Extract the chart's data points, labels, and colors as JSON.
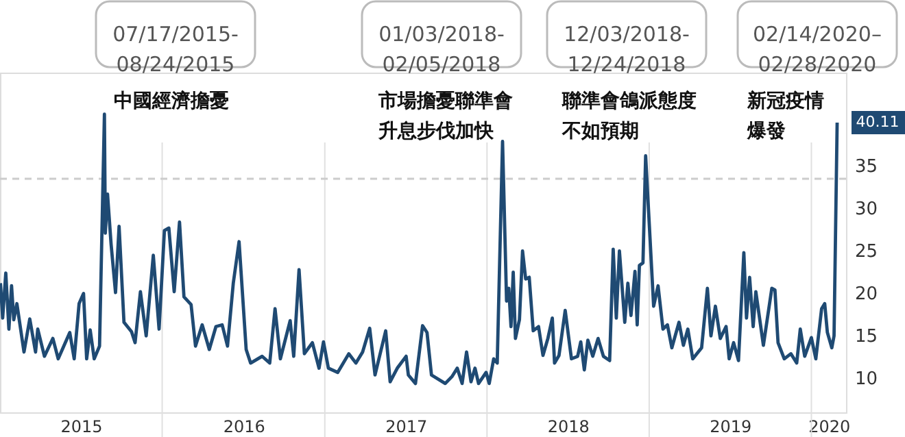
{
  "chart_data": {
    "type": "line",
    "x": [
      "2015-01-02",
      "2015-01-07",
      "2015-01-14",
      "2015-01-21",
      "2015-01-27",
      "2015-02-01",
      "2015-02-08",
      "2015-02-24",
      "2015-03-09",
      "2015-03-22",
      "2015-03-27",
      "2015-04-11",
      "2015-04-30",
      "2015-05-12",
      "2015-06-07",
      "2015-06-17",
      "2015-06-28",
      "2015-07-08",
      "2015-07-15",
      "2015-07-23",
      "2015-08-01",
      "2015-08-13",
      "2015-08-24",
      "2015-08-26",
      "2015-08-31",
      "2015-09-08",
      "2015-09-18",
      "2015-09-26",
      "2015-10-07",
      "2015-10-24",
      "2015-11-01",
      "2015-11-13",
      "2015-11-26",
      "2015-12-12",
      "2015-12-25",
      "2016-01-06",
      "2016-01-16",
      "2016-01-28",
      "2016-02-09",
      "2016-02-19",
      "2016-03-06",
      "2016-03-16",
      "2016-03-31",
      "2016-04-16",
      "2016-05-01",
      "2016-05-15",
      "2016-05-27",
      "2016-06-09",
      "2016-06-22",
      "2016-07-08",
      "2016-07-18",
      "2016-08-13",
      "2016-08-30",
      "2016-09-11",
      "2016-09-23",
      "2016-10-15",
      "2016-10-23",
      "2016-11-04",
      "2016-11-16",
      "2016-12-04",
      "2016-12-19",
      "2016-12-29",
      "2017-01-09",
      "2017-01-30",
      "2017-02-24",
      "2017-03-12",
      "2017-03-27",
      "2017-04-12",
      "2017-04-24",
      "2017-05-18",
      "2017-05-28",
      "2017-06-13",
      "2017-07-03",
      "2017-07-08",
      "2017-07-24",
      "2017-08-09",
      "2017-08-19",
      "2017-08-29",
      "2017-09-29",
      "2017-10-14",
      "2017-10-26",
      "2017-11-06",
      "2017-11-16",
      "2017-11-26",
      "2017-12-05",
      "2017-12-13",
      "2017-12-30",
      "2018-01-06",
      "2018-01-16",
      "2018-01-24",
      "2018-02-05",
      "2018-02-14",
      "2018-02-19",
      "2018-02-24",
      "2018-03-01",
      "2018-03-06",
      "2018-03-15",
      "2018-03-22",
      "2018-03-29",
      "2018-04-06",
      "2018-04-15",
      "2018-04-27",
      "2018-05-07",
      "2018-05-18",
      "2018-05-28",
      "2018-06-02",
      "2018-06-12",
      "2018-06-26",
      "2018-07-10",
      "2018-07-24",
      "2018-07-31",
      "2018-08-08",
      "2018-08-16",
      "2018-08-27",
      "2018-09-08",
      "2018-09-20",
      "2018-10-04",
      "2018-10-12",
      "2018-10-19",
      "2018-10-26",
      "2018-11-07",
      "2018-11-14",
      "2018-11-21",
      "2018-11-30",
      "2018-12-05",
      "2018-12-10",
      "2018-12-18",
      "2018-12-24",
      "2019-01-11",
      "2019-01-21",
      "2019-02-01",
      "2019-02-11",
      "2019-02-21",
      "2019-03-09",
      "2019-03-19",
      "2019-03-29",
      "2019-04-09",
      "2019-04-29",
      "2019-05-12",
      "2019-05-20",
      "2019-05-30",
      "2019-06-10",
      "2019-06-23",
      "2019-06-30",
      "2019-07-10",
      "2019-07-21",
      "2019-08-02",
      "2019-08-08",
      "2019-08-15",
      "2019-08-23",
      "2019-08-29",
      "2019-09-15",
      "2019-10-04",
      "2019-10-11",
      "2019-10-18",
      "2019-11-01",
      "2019-11-16",
      "2019-11-29",
      "2019-12-07",
      "2019-12-17",
      "2020-01-01",
      "2020-01-11",
      "2020-01-24",
      "2020-01-31",
      "2020-02-06",
      "2020-02-16",
      "2020-02-21",
      "2020-02-28"
    ],
    "series": [
      {
        "color": "#1f4a73",
        "values": [
          21.2,
          17.1,
          22.4,
          15.8,
          20.9,
          16.9,
          18.8,
          13.1,
          17.0,
          13.1,
          15.8,
          12.6,
          14.7,
          12.3,
          15.4,
          12.3,
          18.8,
          20.0,
          12.3,
          15.7,
          12.3,
          13.8,
          41.1,
          27.1,
          31.7,
          25.8,
          20.1,
          27.9,
          16.6,
          15.5,
          14.2,
          20.2,
          15.0,
          24.5,
          15.8,
          27.4,
          27.7,
          20.2,
          28.4,
          19.6,
          18.7,
          13.8,
          16.3,
          13.4,
          16.1,
          16.3,
          13.8,
          21.2,
          26.1,
          13.4,
          11.8,
          12.6,
          11.8,
          18.2,
          12.3,
          16.8,
          12.6,
          22.8,
          12.9,
          14.2,
          11.2,
          14.3,
          11.2,
          10.7,
          12.9,
          11.8,
          13.1,
          15.9,
          10.4,
          15.6,
          9.6,
          11.2,
          12.6,
          10.4,
          9.4,
          16.2,
          15.4,
          10.4,
          9.4,
          10.2,
          11.2,
          9.4,
          13.1,
          9.6,
          11.2,
          9.4,
          10.7,
          9.4,
          12.3,
          11.8,
          37.9,
          19.1,
          20.6,
          16.1,
          22.5,
          14.7,
          16.9,
          25.0,
          21.7,
          21.9,
          15.6,
          16.1,
          12.7,
          14.7,
          17.1,
          11.8,
          12.7,
          18.0,
          12.3,
          12.6,
          14.3,
          11.0,
          14.5,
          12.6,
          14.7,
          12.6,
          12.1,
          25.2,
          17.1,
          25.0,
          16.6,
          21.2,
          17.4,
          22.6,
          16.3,
          23.3,
          23.6,
          36.2,
          18.5,
          20.9,
          15.8,
          16.3,
          13.6,
          16.6,
          13.9,
          15.8,
          12.3,
          13.6,
          20.6,
          15.0,
          18.5,
          14.7,
          16.1,
          12.3,
          14.2,
          12.1,
          24.8,
          17.1,
          21.9,
          16.1,
          20.2,
          13.9,
          20.6,
          20.4,
          14.2,
          12.3,
          12.9,
          11.8,
          15.8,
          12.6,
          14.8,
          12.3,
          18.2,
          18.8,
          15.4,
          13.6,
          15.0,
          40.11
        ]
      }
    ],
    "xlim": [
      "2015-01-01",
      "2020-03-19"
    ],
    "xticks": [
      {
        "value": "2015-07-02",
        "label": "2015"
      },
      {
        "value": "2016-01-01",
        "label": null
      },
      {
        "value": "2016-07-02",
        "label": "2016"
      },
      {
        "value": "2017-01-01",
        "label": null
      },
      {
        "value": "2017-07-02",
        "label": "2017"
      },
      {
        "value": "2018-01-01",
        "label": null
      },
      {
        "value": "2018-07-02",
        "label": "2018"
      },
      {
        "value": "2019-01-01",
        "label": null
      },
      {
        "value": "2019-07-02",
        "label": "2019"
      },
      {
        "value": "2020-01-01",
        "label": null
      },
      {
        "value": "2020-02-09",
        "label": "2020"
      }
    ],
    "ylim": [
      6,
      46
    ],
    "yticks": [
      10,
      15,
      20,
      25,
      30,
      35
    ],
    "grid": "x",
    "ref_lines": [
      {
        "axis": "y",
        "value": 33.5,
        "color": "#cccccc",
        "line_style": "dashed"
      }
    ],
    "annotations": [
      "07/17/2015-\n08/24/2015",
      "中國經濟擔憂",
      "01/03/2018-\n02/05/2018",
      "市場擔憂聯準會升息步伐加快",
      "12/03/2018-\n12/24/2018",
      "聯準會鴿派態度不如預期",
      "02/14/2020–\n02/28/2020",
      "新冠疫情爆發",
      {
        "text": "40.11",
        "x": "2020-02-28",
        "y": 40.11
      }
    ]
  }
}
